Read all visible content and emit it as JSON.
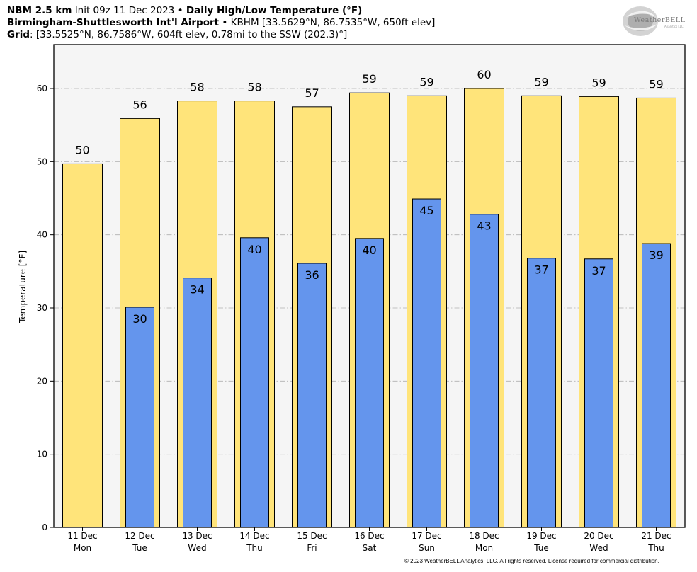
{
  "header": {
    "model": "NBM 2.5 km",
    "init": "Init 09z 11 Dec 2023",
    "sep": "•",
    "product": "Daily High/Low Temperature (°F)",
    "station_name": "Birmingham-Shuttlesworth Int'l Airport",
    "station_info": "KBHM [33.5629°N, 86.7535°W, 650ft elev]",
    "grid_label": "Grid",
    "grid_info": ": [33.5525°N, 86.7586°W, 604ft elev, 0.78mi to the SSW (202.3)°]"
  },
  "logo": {
    "name": "WeatherBELL",
    "sub": "Analytics LLC"
  },
  "footer": "© 2023 WeatherBELL Analytics, LLC. All rights reserved. License required for commercial distribution.",
  "colors": {
    "high": "#ffe47a",
    "low": "#6495ed",
    "plot_bg": "#f5f5f5",
    "grid": "#b0b0b0"
  },
  "chart_data": {
    "type": "bar",
    "title": "Daily High/Low Temperature (°F)",
    "xlabel": "",
    "ylabel": "Temperature [°F]",
    "ylim": [
      0,
      66
    ],
    "yticks": [
      0,
      10,
      20,
      30,
      40,
      50,
      60
    ],
    "grid": true,
    "categories": [
      {
        "date": "11 Dec",
        "day": "Mon"
      },
      {
        "date": "12 Dec",
        "day": "Tue"
      },
      {
        "date": "13 Dec",
        "day": "Wed"
      },
      {
        "date": "14 Dec",
        "day": "Thu"
      },
      {
        "date": "15 Dec",
        "day": "Fri"
      },
      {
        "date": "16 Dec",
        "day": "Sat"
      },
      {
        "date": "17 Dec",
        "day": "Sun"
      },
      {
        "date": "18 Dec",
        "day": "Mon"
      },
      {
        "date": "19 Dec",
        "day": "Tue"
      },
      {
        "date": "20 Dec",
        "day": "Wed"
      },
      {
        "date": "21 Dec",
        "day": "Thu"
      }
    ],
    "series": [
      {
        "values": [
          49.7,
          55.9,
          58.3,
          58.3,
          57.5,
          59.4,
          59.0,
          60.0,
          59.0,
          58.9,
          58.7
        ],
        "labels": [
          "50",
          "56",
          "58",
          "58",
          "57",
          "59",
          "59",
          "60",
          "59",
          "59",
          "59"
        ]
      },
      {
        "values": [
          null,
          30.1,
          34.1,
          39.6,
          36.1,
          39.5,
          44.9,
          42.8,
          36.8,
          36.7,
          38.8
        ],
        "labels": [
          "",
          "30",
          "34",
          "40",
          "36",
          "40",
          "45",
          "43",
          "37",
          "37",
          "39"
        ]
      }
    ]
  }
}
